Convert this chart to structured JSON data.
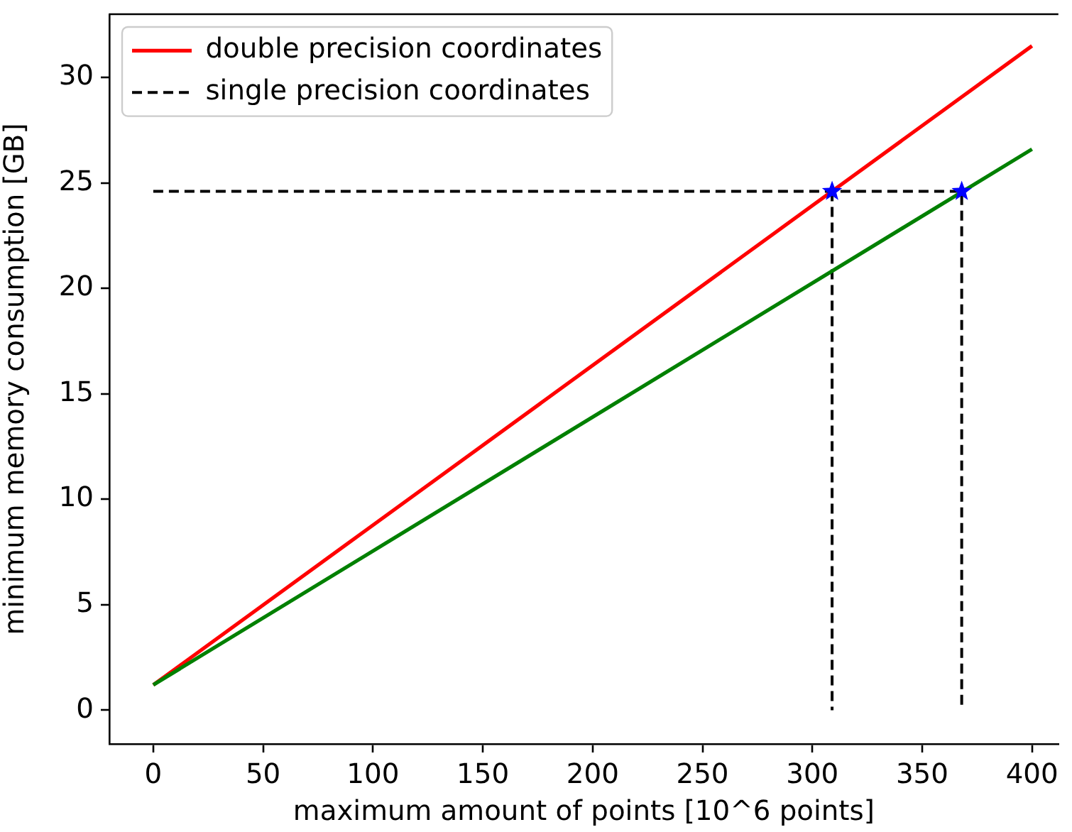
{
  "chart_data": {
    "type": "line",
    "xlabel": "maximum amount of points [10^6 points]",
    "ylabel": "minimum memory consumption [GB]",
    "xlim": [
      -20,
      412
    ],
    "xticks": [
      0,
      50,
      100,
      150,
      200,
      250,
      300,
      350,
      400
    ],
    "ylim": [
      -1.6,
      33
    ],
    "yticks": [
      0,
      5,
      10,
      15,
      20,
      25,
      30
    ],
    "legend": "top left",
    "marker": "none",
    "series": [
      {
        "name": "double precision coordinates",
        "color": "#ff0000",
        "x": [
          0,
          400
        ],
        "values": [
          1.2,
          31.5
        ],
        "line_style": "solid"
      },
      {
        "name": "single precision coordinates",
        "color": "#000000",
        "x": [
          0,
          368,
          368
        ],
        "values": [
          24.6,
          24.6,
          0
        ],
        "line_style": "dashed"
      },
      {
        "color": "#000000",
        "x": [
          309,
          309
        ],
        "values": [
          24.6,
          0
        ],
        "line_style": "dashed"
      },
      {
        "color": "#008000",
        "x": [
          0,
          400
        ],
        "values": [
          1.2,
          26.6
        ],
        "line_style": "solid"
      },
      {
        "type": "scatter",
        "color": "#0000ff",
        "x": [
          309,
          368
        ],
        "values": [
          24.6,
          24.6
        ],
        "marker": "star"
      }
    ]
  }
}
